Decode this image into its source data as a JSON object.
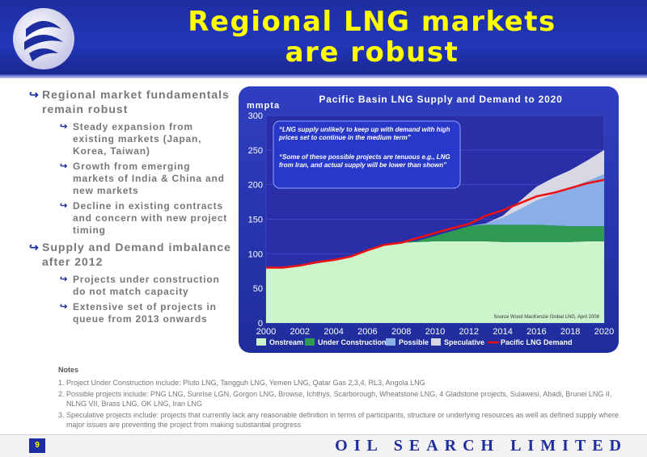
{
  "header": {
    "title_line1": "Regional LNG markets",
    "title_line2": "are robust"
  },
  "bullets": [
    {
      "text": "Regional market fundamentals remain robust",
      "sub": [
        "Steady expansion from existing markets (Japan, Korea, Taiwan)",
        "Growth from emerging markets of India & China and new markets",
        "Decline in existing contracts and concern with new project timing"
      ]
    },
    {
      "text": "Supply and Demand imbalance after 2012",
      "sub": [
        "Projects under construction do not match capacity",
        "Extensive set of projects in queue from 2013 onwards"
      ]
    }
  ],
  "chart_data": {
    "type": "area",
    "title": "Pacific Basin LNG Supply and Demand to 2020",
    "ylabel": "mmpta",
    "xlabel": "",
    "ylim": [
      0,
      300
    ],
    "yticks": [
      0,
      50,
      100,
      150,
      200,
      250,
      300
    ],
    "xticks": [
      2000,
      2002,
      2004,
      2006,
      2008,
      2010,
      2012,
      2014,
      2016,
      2018,
      2020
    ],
    "x": [
      2000,
      2001,
      2002,
      2003,
      2004,
      2005,
      2006,
      2007,
      2008,
      2009,
      2010,
      2011,
      2012,
      2013,
      2014,
      2015,
      2016,
      2017,
      2018,
      2019,
      2020
    ],
    "series": [
      {
        "name": "Onstream",
        "color": "#ccf5cc",
        "values": [
          80,
          80,
          82,
          86,
          90,
          96,
          105,
          113,
          116,
          117,
          118,
          118,
          118,
          118,
          117,
          117,
          117,
          117,
          117,
          118,
          118
        ]
      },
      {
        "name": "Under Construction",
        "color": "#2e9a52",
        "values": [
          0,
          0,
          0,
          0,
          0,
          0,
          0,
          0,
          0,
          2,
          8,
          15,
          22,
          24,
          25,
          25,
          25,
          24,
          23,
          22,
          22
        ]
      },
      {
        "name": "Possible",
        "color": "#8aaee6",
        "values": [
          0,
          0,
          0,
          0,
          0,
          0,
          0,
          0,
          0,
          0,
          0,
          0,
          0,
          2,
          10,
          22,
          35,
          45,
          55,
          65,
          75
        ]
      },
      {
        "name": "Speculative",
        "color": "#d8d8e4",
        "values": [
          0,
          0,
          0,
          0,
          0,
          0,
          0,
          0,
          0,
          0,
          0,
          0,
          0,
          0,
          3,
          12,
          20,
          24,
          26,
          30,
          35
        ]
      }
    ],
    "line": {
      "name": "Pacific LNG Demand",
      "color": "#ee1010",
      "values": [
        80,
        80,
        83,
        88,
        91,
        96,
        105,
        113,
        116,
        123,
        130,
        137,
        143,
        155,
        163,
        173,
        183,
        188,
        195,
        202,
        207
      ]
    },
    "annotations": [
      "“LNG supply unlikely to keep up with demand with high prices set to continue in the medium term”",
      "“Some of these possible projects are tenuous e.g., LNG from Iran, and actual supply will be lower than shown”"
    ],
    "source": "Source    Wood MacKenzie Global LNG, April 2008",
    "legend_position": "bottom"
  },
  "notes": {
    "title": "Notes",
    "items": [
      "1. Project Under Construction include: Pluto LNG, Tangguh LNG, Yemen LNG, Qatar Gas 2,3,4, RL3, Angola LNG",
      "2. Possible projects include: PNG LNG, Sunrise LGN, Gorgon LNG, Browse, Ichthys, Scarborough, Wheatstone LNG, 4 Gladstone projects, Sulawesi, Abadi, Brunei LNG II, NLNG VII, Brass LNG, OK LNG, Iran LNG",
      "3. Speculative projects include: projects that currently lack any reasonable definition in terms of participants, structure or underlying resources as well as defined supply where major issues are preventing the project from making substantial progress"
    ]
  },
  "footer": {
    "page": "9",
    "brand": "OIL SEARCH LIMITED"
  }
}
